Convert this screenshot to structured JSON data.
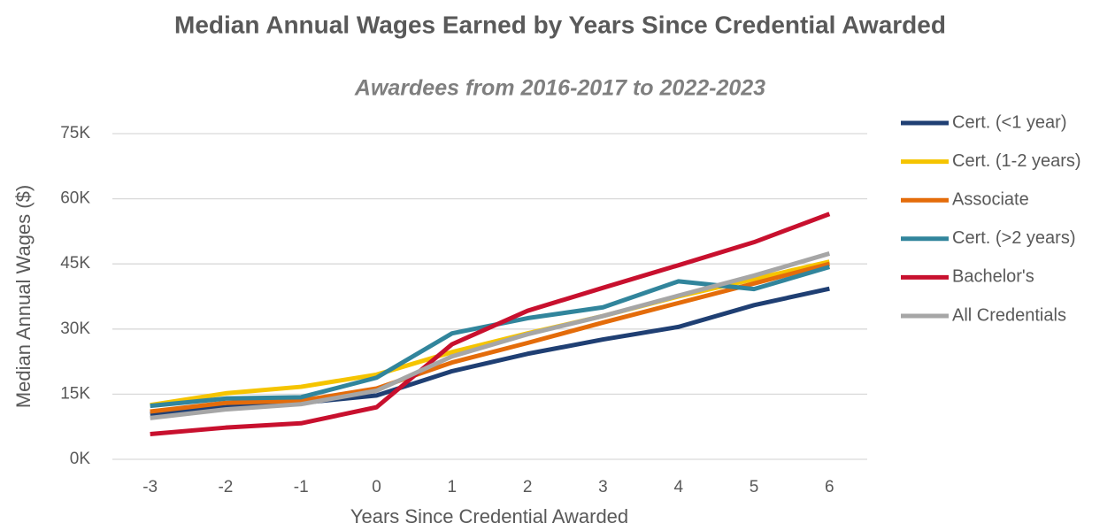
{
  "chart_data": {
    "type": "line",
    "title": "Median Annual Wages Earned by Years Since Credential Awarded",
    "subtitle": "Awardees from 2016-2017 to 2022-2023",
    "x_label": "Years Since Credential Awarded",
    "y_label": "Median Annual Wages ($)",
    "x": [
      -3,
      -2,
      -1,
      0,
      1,
      2,
      3,
      4,
      5,
      6
    ],
    "xlim": [
      -3.5,
      6.5
    ],
    "xticks": [
      -3,
      -2,
      -1,
      0,
      1,
      2,
      3,
      4,
      5,
      6
    ],
    "ylim": [
      0,
      75000
    ],
    "yticks": [
      {
        "value": 0,
        "label": "0K"
      },
      {
        "value": 15000,
        "label": "15K"
      },
      {
        "value": 30000,
        "label": "30K"
      },
      {
        "value": 45000,
        "label": "45K"
      },
      {
        "value": 60000,
        "label": "60K"
      },
      {
        "value": 75000,
        "label": "75K"
      }
    ],
    "grid": true,
    "legend": "right",
    "series": [
      {
        "name": "Cert. (<1 year)",
        "color": "#1f3f73",
        "values": [
          10500,
          12000,
          13000,
          14700,
          20300,
          24300,
          27600,
          30500,
          35500,
          39300
        ]
      },
      {
        "name": "Cert. (1-2 years)",
        "color": "#f5c400",
        "values": [
          12500,
          15200,
          16700,
          19500,
          24700,
          29000,
          33000,
          37500,
          41500,
          45500
        ]
      },
      {
        "name": "Associate",
        "color": "#e46c0a",
        "values": [
          11000,
          13000,
          13500,
          16300,
          22300,
          26800,
          31500,
          36000,
          40500,
          45000
        ]
      },
      {
        "name": "Cert. (>2 years)",
        "color": "#31859c",
        "values": [
          12300,
          14000,
          14300,
          18800,
          29000,
          32500,
          35000,
          41000,
          39200,
          44300
        ]
      },
      {
        "name": "Bachelor's",
        "color": "#c8102e",
        "values": [
          5800,
          7300,
          8300,
          12000,
          26500,
          34200,
          39500,
          44700,
          50000,
          56500
        ]
      },
      {
        "name": "All Credentials",
        "color": "#a6a6a6",
        "values": [
          9500,
          11500,
          12700,
          15800,
          23700,
          28800,
          33000,
          37700,
          42300,
          47400
        ]
      }
    ]
  }
}
